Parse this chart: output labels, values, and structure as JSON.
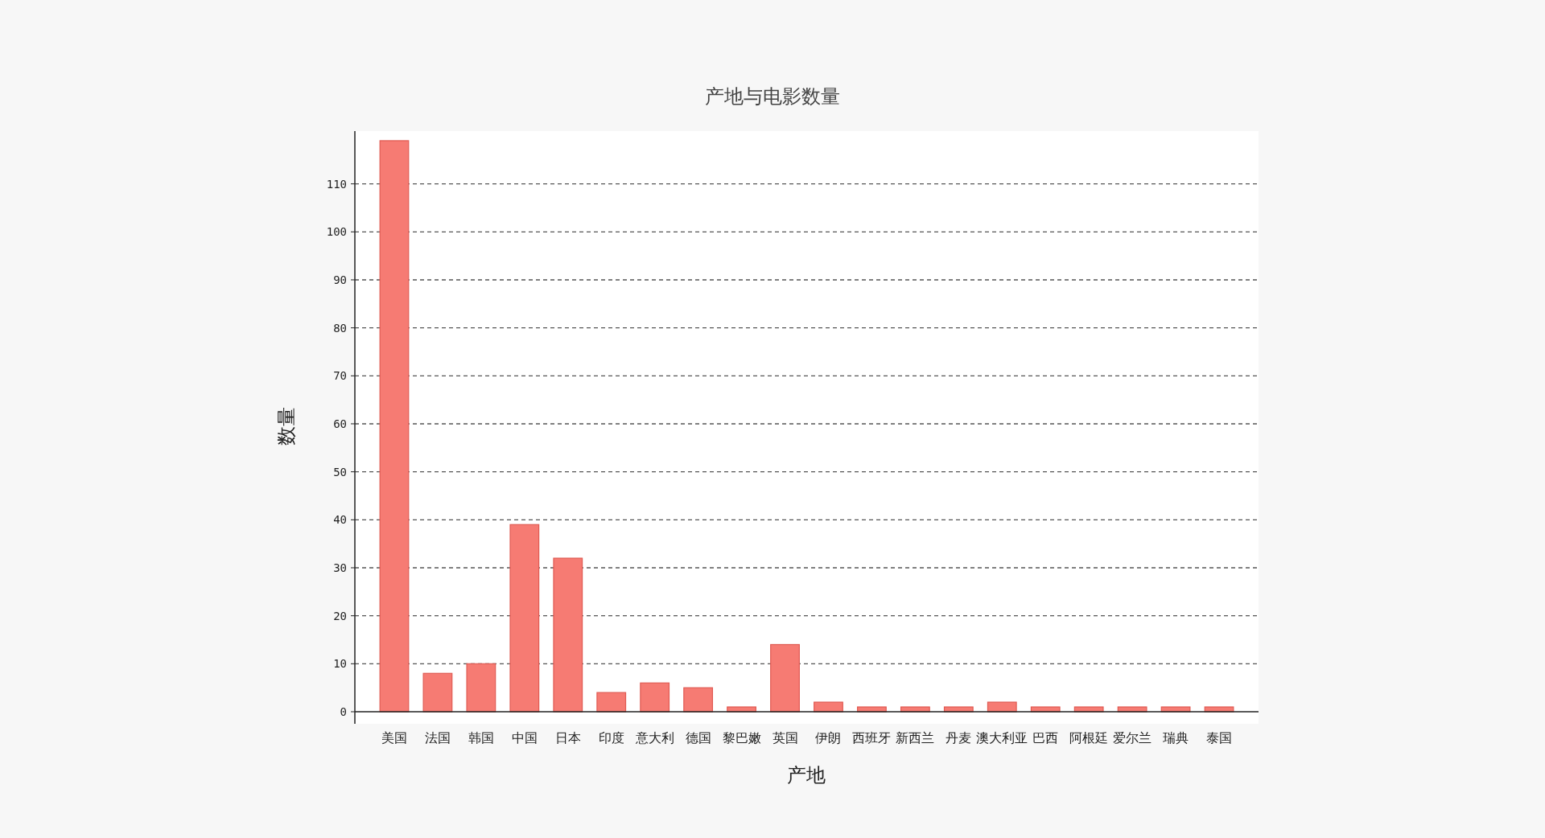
{
  "chart_data": {
    "type": "bar",
    "title": "产地与电影数量",
    "xlabel": "产地",
    "ylabel": "数量",
    "categories": [
      "美国",
      "法国",
      "韩国",
      "中国",
      "日本",
      "印度",
      "意大利",
      "德国",
      "黎巴嫩",
      "英国",
      "伊朗",
      "西班牙",
      "新西兰",
      "丹麦",
      "澳大利亚",
      "巴西",
      "阿根廷",
      "爱尔兰",
      "瑞典",
      "泰国"
    ],
    "values": [
      119,
      8,
      10,
      39,
      32,
      4,
      6,
      5,
      1,
      14,
      2,
      1,
      1,
      1,
      2,
      1,
      1,
      1,
      1,
      1
    ],
    "color": "#f67b73",
    "ylim": [
      0,
      121
    ],
    "yticks": [
      0,
      10,
      20,
      30,
      40,
      50,
      60,
      70,
      80,
      90,
      100,
      110
    ],
    "grid": "y"
  }
}
